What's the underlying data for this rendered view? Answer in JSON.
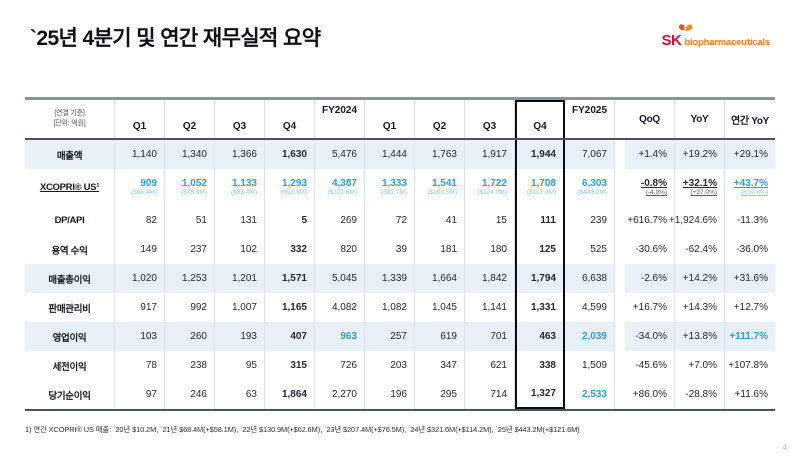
{
  "slide": {
    "title": "`25년 4분기 및 연간 재무실적 요약",
    "footnote": "1) 연간 XCOPRI® US 매출: `20년 $10.2M, `21년 $68.4M(+$58.1M), `22년 $130.9M(+$62.6M), `23년 $207.4M(+$76.5M), `24년 $321.6M(+$114.2M), `25년 $443.2M(+$121.6M)",
    "page_number": "4"
  },
  "logo": {
    "text": "SK",
    "subtext": "biopharmaceuticals",
    "sk_color": "#d6103c",
    "sub_color": "#f47b20"
  },
  "colors": {
    "accent_blue": "#2f9fd9",
    "accent_blue_light": "#8cc8e9",
    "row_band": "#e9f0f8"
  },
  "table": {
    "corner_note": [
      "[연결 기준]",
      "[단위: 억원]"
    ],
    "group_labels": {
      "fy2024": "FY2024",
      "fy2025": "FY2025"
    },
    "quarter_headers": [
      "Q1",
      "Q2",
      "Q3",
      "Q4"
    ],
    "ratio_headers": [
      "QoQ",
      "YoY",
      "연간 YoY"
    ],
    "highlight_column": "FY2025 Q4",
    "rows": [
      {
        "label": "매출액",
        "band": true,
        "cells": [
          "1,140",
          "1,340",
          "1,366",
          "1,630",
          "5,476",
          "1,444",
          "1,763",
          "1,917",
          "1,944",
          "7,067",
          "+1.4%",
          "+19.2%",
          "+29.1%"
        ]
      },
      {
        "label": "XCOPRI® US¹",
        "blue": true,
        "tall": true,
        "label_underline": true,
        "cells": [
          {
            "v": "909",
            "s": "($68.4M)"
          },
          {
            "v": "1,052",
            "s": "($76.9M)"
          },
          {
            "v": "1,133",
            "s": "($83.4M)"
          },
          {
            "v": "1,293",
            "s": "($92.9M)"
          },
          {
            "v": "4,387",
            "s": "($321.6M)"
          },
          {
            "v": "1,333",
            "s": "($91.7M)"
          },
          {
            "v": "1,541",
            "s": "($109.5M)"
          },
          {
            "v": "1,722",
            "s": "($124.0M)"
          },
          {
            "v": "1,708",
            "s": "($117.9M)"
          },
          {
            "v": "6,303",
            "s": "($443.2M)"
          },
          {
            "v": "-0.8%",
            "s": "(-4.9%)",
            "c": "dark",
            "u": true
          },
          {
            "v": "+32.1%",
            "s": "(+27.0%)",
            "c": "dark",
            "u": true
          },
          {
            "v": "+43.7%",
            "s": "(+37.8%)",
            "u": true
          }
        ]
      },
      {
        "label": "DP/API",
        "cells": [
          "82",
          "51",
          "131",
          "5",
          "269",
          "72",
          "41",
          "15",
          "111",
          "239",
          "+616.7%",
          "+1,924.6%",
          "-11.3%"
        ]
      },
      {
        "label": "용역 수익",
        "cells": [
          "149",
          "237",
          "102",
          "332",
          "820",
          "39",
          "181",
          "180",
          "125",
          "525",
          "-30.6%",
          "-62.4%",
          "-36.0%"
        ]
      },
      {
        "label": "매출총이익",
        "band": true,
        "cells": [
          "1,020",
          "1,253",
          "1,201",
          "1,571",
          "5,045",
          "1,339",
          "1,664",
          "1,842",
          "1,794",
          "6,638",
          "-2.6%",
          "+14.2%",
          "+31.6%"
        ]
      },
      {
        "label": "판매관리비",
        "cells": [
          "917",
          "992",
          "1,007",
          "1,165",
          "4,082",
          "1,082",
          "1,045",
          "1,141",
          "1,331",
          "4,599",
          "+16.7%",
          "+14.3%",
          "+12.7%"
        ]
      },
      {
        "label": "영업이익",
        "band": true,
        "cells": [
          "103",
          "260",
          "193",
          "407",
          {
            "v": "963",
            "c": "blue"
          },
          "257",
          "619",
          "701",
          "463",
          {
            "v": "2,039",
            "c": "blue"
          },
          "-34.0%",
          "+13.8%",
          {
            "v": "+111.7%",
            "c": "blue"
          }
        ]
      },
      {
        "label": "세전이익",
        "cells": [
          "78",
          "238",
          "95",
          "315",
          "726",
          "203",
          "347",
          "621",
          "338",
          "1,509",
          "-45.6%",
          "+7.0%",
          "+107.8%"
        ]
      },
      {
        "label": "당기순이익",
        "cells": [
          "97",
          "246",
          "63",
          "1,864",
          "2,270",
          "196",
          "295",
          "714",
          "1,327",
          {
            "v": "2,533",
            "c": "blue"
          },
          "+86.0%",
          "-28.8%",
          "+11.6%"
        ]
      }
    ]
  }
}
